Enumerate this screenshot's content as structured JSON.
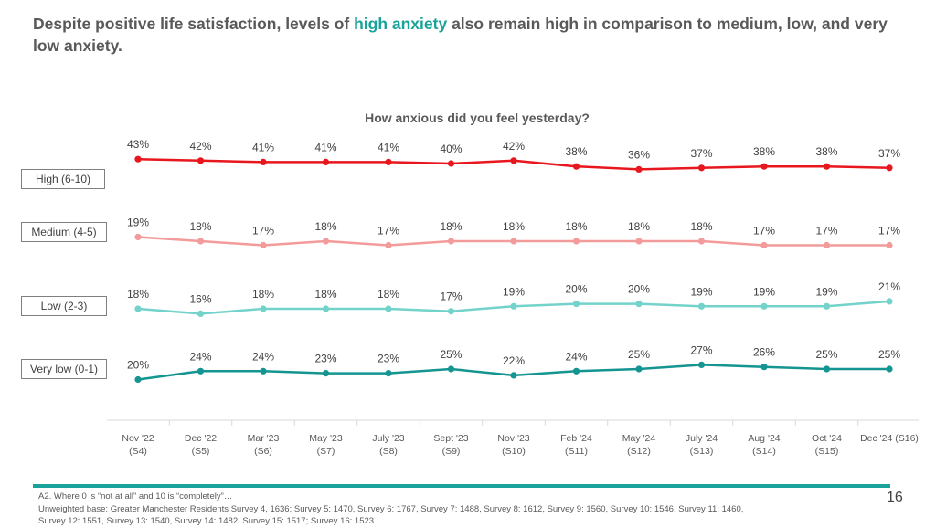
{
  "headline": {
    "before": "Despite positive life satisfaction, levels of ",
    "highlight": "high anxiety",
    "after": " also remain high in comparison to medium, low, and very low anxiety."
  },
  "colors": {
    "accent": "#1aa39a",
    "high": "#e8161d",
    "medium": "#f29b9a",
    "low": "#73d3cb",
    "very_low": "#149591"
  },
  "chart_data": {
    "type": "line",
    "title": "How anxious did you feel yesterday?",
    "categories": [
      {
        "label": "Nov '22",
        "survey": "(S4)"
      },
      {
        "label": "Dec '22",
        "survey": "(S5)"
      },
      {
        "label": "Mar '23",
        "survey": "(S6)"
      },
      {
        "label": "May '23",
        "survey": "(S7)"
      },
      {
        "label": "July '23",
        "survey": "(S8)"
      },
      {
        "label": "Sept '23",
        "survey": "(S9)"
      },
      {
        "label": "Nov '23",
        "survey": "(S10)"
      },
      {
        "label": "Feb '24",
        "survey": "(S11)"
      },
      {
        "label": "May '24",
        "survey": "(S12)"
      },
      {
        "label": "July '24",
        "survey": "(S13)"
      },
      {
        "label": "Aug '24",
        "survey": "(S14)"
      },
      {
        "label": "Oct '24",
        "survey": "(S15)"
      },
      {
        "label": "Dec '24 (S16)",
        "survey": ""
      }
    ],
    "series": [
      {
        "key": "high",
        "name": "High (6-10)",
        "color": "#e8161d",
        "values": [
          43,
          42,
          41,
          41,
          41,
          40,
          42,
          38,
          36,
          37,
          38,
          38,
          37
        ]
      },
      {
        "key": "medium",
        "name": "Medium (4-5)",
        "color": "#f29b9a",
        "values": [
          19,
          18,
          17,
          18,
          17,
          18,
          18,
          18,
          18,
          18,
          17,
          17,
          17
        ]
      },
      {
        "key": "low",
        "name": "Low (2-3)",
        "color": "#73d3cb",
        "values": [
          18,
          16,
          18,
          18,
          18,
          17,
          19,
          20,
          20,
          19,
          19,
          19,
          21
        ]
      },
      {
        "key": "very_low",
        "name": "Very low (0-1)",
        "color": "#149591",
        "values": [
          20,
          24,
          24,
          23,
          23,
          25,
          22,
          24,
          25,
          27,
          26,
          25,
          25
        ]
      }
    ],
    "value_suffix": "%",
    "legend": "left, beside each line"
  },
  "footnote": {
    "line1": "A2. Where 0 is “not at all” and 10 is “completely”…",
    "line2": "Unweighted base: Greater Manchester Residents Survey 4, 1636; Survey 5: 1470, Survey 6: 1767, Survey 7: 1488, Survey 8: 1612, Survey 9: 1560, Survey 10: 1546, Survey 11: 1460,",
    "line3": "Survey 12: 1551, Survey 13: 1540, Survey 14: 1482, Survey 15: 1517; Survey 16: 1523"
  },
  "page_number": "16"
}
